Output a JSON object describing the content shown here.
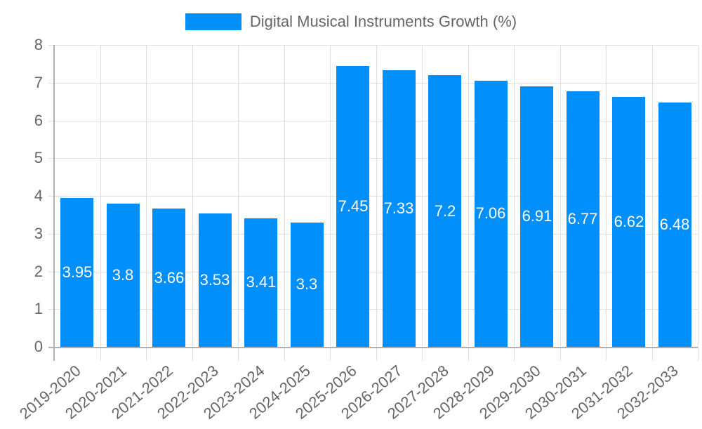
{
  "legend": {
    "label": "Digital Musical Instruments Growth (%)",
    "color": "#008ffb"
  },
  "colors": {
    "bar": "#008ffb",
    "bar_label": "#ffffff",
    "grid": "#e0e0e0",
    "axis": "#b0b0b0",
    "tick_text": "#666666"
  },
  "y_ticks": [
    "0",
    "1",
    "2",
    "3",
    "4",
    "5",
    "6",
    "7",
    "8"
  ],
  "chart_data": {
    "type": "bar",
    "title": "",
    "xlabel": "",
    "ylabel": "",
    "ylim": [
      0,
      8
    ],
    "grid": true,
    "legend_position": "top",
    "categories": [
      "2019-2020",
      "2020-2021",
      "2021-2022",
      "2022-2023",
      "2023-2024",
      "2024-2025",
      "2025-2026",
      "2026-2027",
      "2027-2028",
      "2028-2029",
      "2029-2030",
      "2030-2031",
      "2031-2032",
      "2032-2033"
    ],
    "series": [
      {
        "name": "Digital Musical Instruments Growth (%)",
        "values": [
          3.95,
          3.8,
          3.66,
          3.53,
          3.41,
          3.3,
          7.45,
          7.33,
          7.2,
          7.06,
          6.91,
          6.77,
          6.62,
          6.48
        ]
      }
    ],
    "value_labels": [
      "3.95",
      "3.8",
      "3.66",
      "3.53",
      "3.41",
      "3.3",
      "7.45",
      "7.33",
      "7.2",
      "7.06",
      "6.91",
      "6.77",
      "6.62",
      "6.48"
    ]
  }
}
